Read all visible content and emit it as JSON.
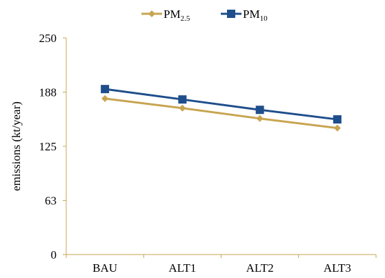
{
  "chart_data": {
    "type": "line",
    "title": "",
    "xlabel": "",
    "ylabel": "emissions  (kt/year)",
    "categories": [
      "BAU",
      "ALT1",
      "ALT2",
      "ALT3"
    ],
    "y_ticks": [
      "0",
      "63",
      "125",
      "188",
      "250"
    ],
    "ylim": [
      0,
      250
    ],
    "grid": false,
    "legend_position": "top",
    "series": [
      {
        "name": "PM",
        "name_subscript": "2.5",
        "color": "#C8A450",
        "marker": "diamond",
        "values": [
          180,
          169,
          157,
          146
        ]
      },
      {
        "name": "PM",
        "name_subscript": "10",
        "color": "#1F4E8C",
        "marker": "square",
        "values": [
          191,
          179,
          167,
          156
        ]
      }
    ]
  }
}
